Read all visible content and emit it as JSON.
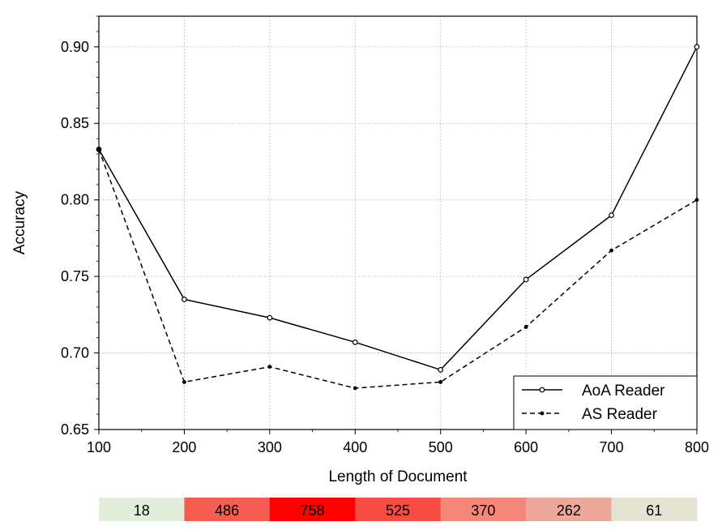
{
  "chart_data": {
    "type": "line",
    "title": "",
    "xlabel": "Length of Document",
    "ylabel": "Accuracy",
    "x": [
      100,
      200,
      300,
      400,
      500,
      600,
      700,
      800
    ],
    "xlim": [
      100,
      800
    ],
    "ylim": [
      0.65,
      0.92
    ],
    "x_ticks": [
      "100",
      "200",
      "300",
      "400",
      "500",
      "600",
      "700",
      "800"
    ],
    "y_ticks": [
      "0.65",
      "0.70",
      "0.75",
      "0.80",
      "0.85",
      "0.90"
    ],
    "grid": true,
    "legend_position": "bottom-right",
    "series": [
      {
        "name": "AoA Reader",
        "style": "solid",
        "marker": "open-circle",
        "values": [
          0.833,
          0.735,
          0.723,
          0.707,
          0.689,
          0.748,
          0.79,
          0.9
        ]
      },
      {
        "name": "AS Reader",
        "style": "dashed",
        "marker": "filled-dot",
        "values": [
          0.833,
          0.681,
          0.691,
          0.677,
          0.681,
          0.717,
          0.767,
          0.8
        ]
      }
    ],
    "count_bar": {
      "values": [
        "18",
        "486",
        "758",
        "525",
        "370",
        "262",
        "61"
      ],
      "colors": [
        "#e2eedb",
        "#f65c52",
        "#fd0200",
        "#f74c44",
        "#f3887a",
        "#eda89c",
        "#e4e3d2"
      ]
    }
  }
}
